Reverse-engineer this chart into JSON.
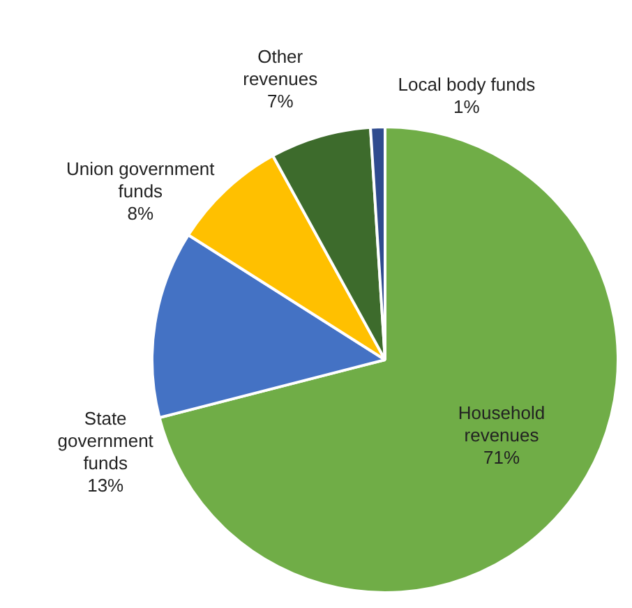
{
  "chart_data": {
    "type": "pie",
    "categories": [
      "Household revenues",
      "State government funds",
      "Union government funds",
      "Other revenues",
      "Local body funds"
    ],
    "values": [
      71,
      13,
      8,
      7,
      1
    ],
    "value_labels": [
      "71%",
      "13%",
      "8%",
      "7%",
      "1%"
    ],
    "colors": [
      "#70ad47",
      "#4472c4",
      "#ffc000",
      "#3d6b2c",
      "#2f4b8f"
    ],
    "legend": false
  }
}
